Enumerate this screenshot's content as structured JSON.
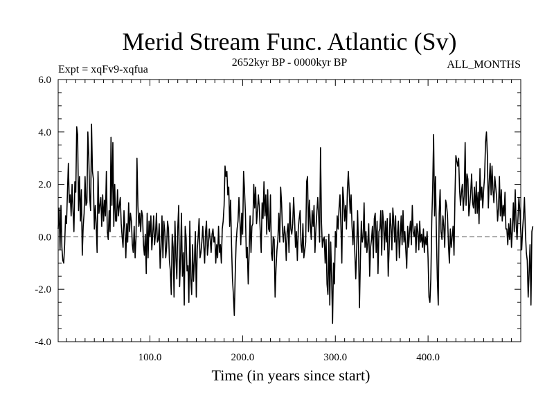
{
  "chart_data": {
    "type": "line",
    "title": "Merid Stream Func. Atlantic (Sv)",
    "subtitle_left": "Expt = xqFv9-xqfua",
    "subtitle_center": "2652kyr BP - 0000kyr BP",
    "subtitle_right": "ALL_MONTHS",
    "xlabel": "Time (in years since start)",
    "ylabel": "",
    "xlim": [
      1,
      500
    ],
    "ylim": [
      -4.0,
      6.0
    ],
    "x_ticks": [
      100,
      200,
      300,
      400
    ],
    "x_tick_labels": [
      "100.0",
      "200.0",
      "300.0",
      "400.0"
    ],
    "y_ticks": [
      -4,
      -2,
      0,
      2,
      4,
      6
    ],
    "y_tick_labels": [
      "-4.0",
      "-2.0",
      "0.0",
      "2.0",
      "4.0",
      "6.0"
    ],
    "zero_line": true,
    "series": [
      {
        "name": "Merid Stream Func. Atlantic",
        "color": "#000000",
        "x_start": 1,
        "x_step": 1,
        "values": [
          0.3,
          1.1,
          -0.5,
          1.2,
          -0.4,
          -0.9,
          -1.0,
          -0.3,
          0.8,
          0.5,
          1.7,
          2.8,
          1.3,
          1.6,
          0.8,
          2.0,
          1.0,
          0.2,
          2.1,
          1.7,
          4.2,
          3.9,
          1.0,
          2.3,
          0.6,
          1.8,
          -0.7,
          0.4,
          0.9,
          2.3,
          1.2,
          1.3,
          4.0,
          3.1,
          1.5,
          1.0,
          4.3,
          2.5,
          2.2,
          0.3,
          1.2,
          0.5,
          -0.6,
          2.5,
          0.9,
          1.2,
          1.5,
          0.4,
          1.6,
          0.6,
          1.4,
          0.8,
          2.5,
          0.2,
          -0.1,
          1.0,
          0.2,
          3.8,
          1.2,
          3.6,
          0.4,
          2.0,
          0.6,
          0.6,
          1.8,
          0.8,
          1.2,
          1.5,
          0.5,
          0.0,
          -0.4,
          1.0,
          0.3,
          -0.8,
          0.5,
          -0.2,
          1.3,
          0.2,
          0.9,
          0.6,
          -0.3,
          -0.6,
          0.4,
          -0.8,
          0.0,
          3.0,
          1.2,
          0.4,
          0.9,
          0.2,
          1.0,
          0.8,
          -0.3,
          -0.7,
          0.1,
          -1.4,
          0.9,
          -0.8,
          0.6,
          0.0,
          0.8,
          -0.5,
          0.1,
          0.8,
          -0.3,
          0.1,
          0.9,
          -0.2,
          -0.1,
          0.5,
          -1.2,
          -0.4,
          0.8,
          -0.8,
          0.6,
          0.2,
          -0.8,
          -0.4,
          0.6,
          0.3,
          -0.9,
          -1.3,
          -2.2,
          0.1,
          -0.4,
          -2.3,
          0.6,
          -0.8,
          -1.6,
          0.3,
          1.2,
          -1.9,
          -0.8,
          0.9,
          -1.5,
          -0.6,
          -2.6,
          0.4,
          0.0,
          -1.3,
          -1.1,
          -2.5,
          0.6,
          -1.6,
          -2.2,
          -0.3,
          -1.7,
          -0.9,
          0.2,
          -2.3,
          -0.5,
          0.0,
          0.7,
          -0.8,
          -0.6,
          -0.2,
          0.4,
          -0.3,
          -1.0,
          0.2,
          0.6,
          -0.7,
          -0.3,
          0.3,
          -0.1,
          -0.6,
          0.1,
          0.3,
          -0.2,
          0.0,
          -1.0,
          -0.3,
          -0.8,
          0.4,
          -0.6,
          -0.3,
          -1.0,
          0.3,
          0.6,
          1.2,
          2.7,
          2.3,
          2.5,
          1.6,
          1.9,
          0.4,
          1.4,
          -0.3,
          -1.6,
          -2.2,
          -3.0,
          -1.4,
          -0.2,
          0.3,
          0.6,
          1.5,
          0.7,
          -0.3,
          0.9,
          0.1,
          2.5,
          1.8,
          0.9,
          -0.8,
          -0.4,
          -1.8,
          -0.6,
          0.8,
          -0.6,
          0.4,
          0.5,
          2.0,
          1.1,
          1.9,
          0.5,
          1.0,
          1.6,
          1.1,
          0.2,
          -0.6,
          1.3,
          0.7,
          2.1,
          0.8,
          1.6,
          0.1,
          1.8,
          0.3,
          0.2,
          1.6,
          -0.6,
          -0.9,
          0.0,
          -0.1,
          -2.3,
          -1.2,
          -0.5,
          -0.1,
          0.9,
          -0.2,
          1.9,
          1.3,
          0.2,
          -0.2,
          0.4,
          0.1,
          -0.9,
          0.2,
          0.5,
          -0.6,
          1.3,
          0.3,
          0.1,
          0.5,
          1.5,
          0.7,
          -0.4,
          0.2,
          -0.9,
          0.3,
          0.7,
          1.0,
          -0.3,
          -0.6,
          0.5,
          -0.8,
          -0.5,
          -0.2,
          2.1,
          2.3,
          0.2,
          1.4,
          0.5,
          -0.1,
          1.0,
          0.4,
          1.2,
          -0.6,
          0.3,
          0.9,
          1.5,
          0.8,
          -0.2,
          3.4,
          0.6,
          -0.4,
          -0.1,
          0.0,
          -1.0,
          -0.1,
          -1.8,
          -2.2,
          0.1,
          -2.6,
          -0.2,
          -1.6,
          -3.3,
          -1.0,
          -1.8,
          0.2,
          -0.4,
          0.8,
          0.3,
          1.1,
          1.6,
          0.4,
          -1.0,
          1.9,
          1.4,
          0.6,
          1.2,
          0.3,
          1.8,
          2.5,
          1.7,
          0.9,
          1.6,
          0.4,
          -0.3,
          0.6,
          -0.6,
          -1.6,
          -0.5,
          1.0,
          -0.4,
          -2.7,
          -0.9,
          0.6,
          -0.2,
          0.0,
          1.3,
          -0.4,
          0.2,
          -0.6,
          -0.2,
          0.5,
          -1.5,
          -0.4,
          -0.1,
          0.4,
          -0.8,
          0.7,
          0.9,
          -0.6,
          0.6,
          -1.4,
          0.2,
          0.3,
          1.0,
          -0.7,
          1.0,
          0.5,
          -0.5,
          0.6,
          -0.2,
          0.7,
          -1.5,
          -0.5,
          0.9,
          0.4,
          -0.5,
          1.1,
          0.6,
          -0.2,
          0.8,
          -0.9,
          0.1,
          0.6,
          -0.8,
          0.0,
          0.8,
          -0.3,
          1.0,
          -0.2,
          0.2,
          -0.5,
          -1.2,
          0.4,
          -0.4,
          0.2,
          0.6,
          -0.3,
          1.2,
          0.2,
          0.0,
          0.4,
          -0.6,
          0.5,
          0.2,
          -0.5,
          0.6,
          -0.2,
          0.1,
          -0.4,
          0.3,
          -0.6,
          0.0,
          -0.3,
          0.2,
          -0.8,
          -2.3,
          -2.5,
          -1.6,
          0.6,
          1.9,
          3.9,
          0.8,
          2.3,
          0.1,
          -1.6,
          -2.6,
          0.9,
          1.8,
          0.2,
          -0.1,
          0.8,
          0.4,
          -0.4,
          1.4,
          1.2,
          0.8,
          -0.3,
          -1.0,
          0.3,
          -0.4,
          0.0,
          0.4,
          -0.7,
          1.5,
          3.1,
          2.9,
          2.7,
          3.0,
          1.8,
          1.2,
          1.7,
          2.0,
          1.0,
          1.6,
          3.6,
          1.2,
          2.4,
          2.2,
          0.8,
          1.2,
          1.7,
          2.4,
          1.3,
          1.1,
          1.9,
          0.9,
          2.1,
          0.9,
          1.7,
          0.5,
          2.6,
          1.4,
          1.9,
          1.1,
          1.8,
          2.3,
          3.6,
          4.0,
          3.1,
          1.1,
          2.1,
          2.8,
          1.6,
          2.7,
          1.8,
          1.3,
          2.3,
          1.9,
          1.5,
          0.6,
          1.1,
          2.3,
          0.8,
          1.8,
          0.6,
          1.2,
          0.8,
          1.7,
          0.3,
          0.3,
          -0.3,
          0.5,
          -0.1,
          0.7,
          -0.4,
          0.3,
          1.3,
          0.2,
          1.8,
          0.5,
          -0.1,
          0.7,
          1.5,
          1.0,
          0.2,
          -0.5,
          0.3,
          0.8,
          1.5,
          0.2,
          -0.6,
          -0.9,
          -2.3,
          -1.4,
          -0.3,
          -2.6,
          0.2,
          0.4
        ]
      }
    ]
  }
}
